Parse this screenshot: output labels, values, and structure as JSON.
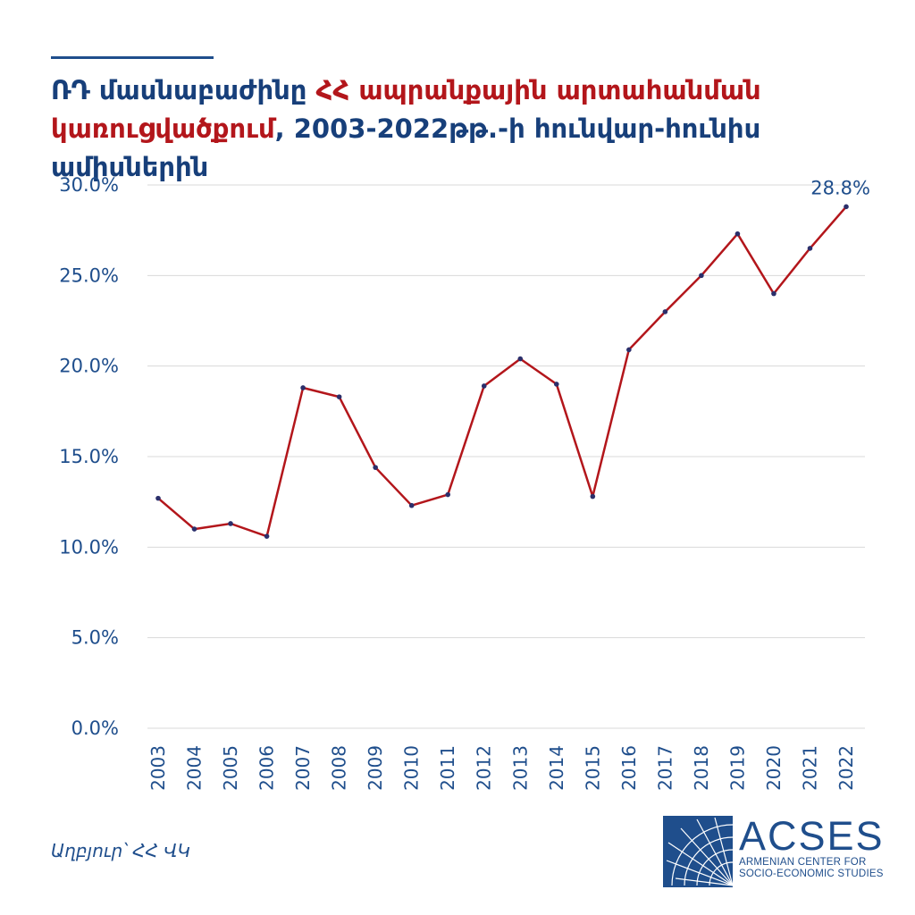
{
  "title": {
    "part1": "ՌԴ մասնաբաժինը ",
    "part2": "ՀՀ ապրանքային արտահանման կառուցվածքում",
    "part3": ", 2003-2022թթ.-ի հունվար-հունիս ամիսներին"
  },
  "source": "Աղբյուր՝ ՀՀ ՎԿ",
  "logo": {
    "name": "ACSES",
    "subtitle_line1": "ARMENIAN CENTER FOR",
    "subtitle_line2": "SOCIO-ECONOMIC STUDIES"
  },
  "colors": {
    "line": "#b3161b",
    "marker": "#2b2f6b",
    "axis_text": "#1f4e8c",
    "title_blue": "#173f7a",
    "title_red": "#b3161b",
    "grid": "#d9d9d9"
  },
  "chart_data": {
    "type": "line",
    "x": [
      "2003",
      "2004",
      "2005",
      "2006",
      "2007",
      "2008",
      "2009",
      "2010",
      "2011",
      "2012",
      "2013",
      "2014",
      "2015",
      "2016",
      "2017",
      "2018",
      "2019",
      "2020",
      "2021",
      "2022"
    ],
    "series": [
      {
        "values": [
          12.7,
          11.0,
          11.3,
          10.6,
          18.8,
          18.3,
          14.4,
          12.3,
          12.9,
          18.9,
          20.4,
          19.0,
          12.8,
          20.9,
          23.0,
          25.0,
          27.3,
          24.0,
          26.5,
          28.8
        ]
      }
    ],
    "ylim": [
      0,
      30
    ],
    "yticks": [
      "0.0%",
      "5.0%",
      "10.0%",
      "15.0%",
      "20.0%",
      "25.0%",
      "30.0%"
    ],
    "annotations": [
      {
        "x": "2022",
        "label": "28.8%"
      }
    ],
    "grid": true,
    "legend": "none"
  }
}
